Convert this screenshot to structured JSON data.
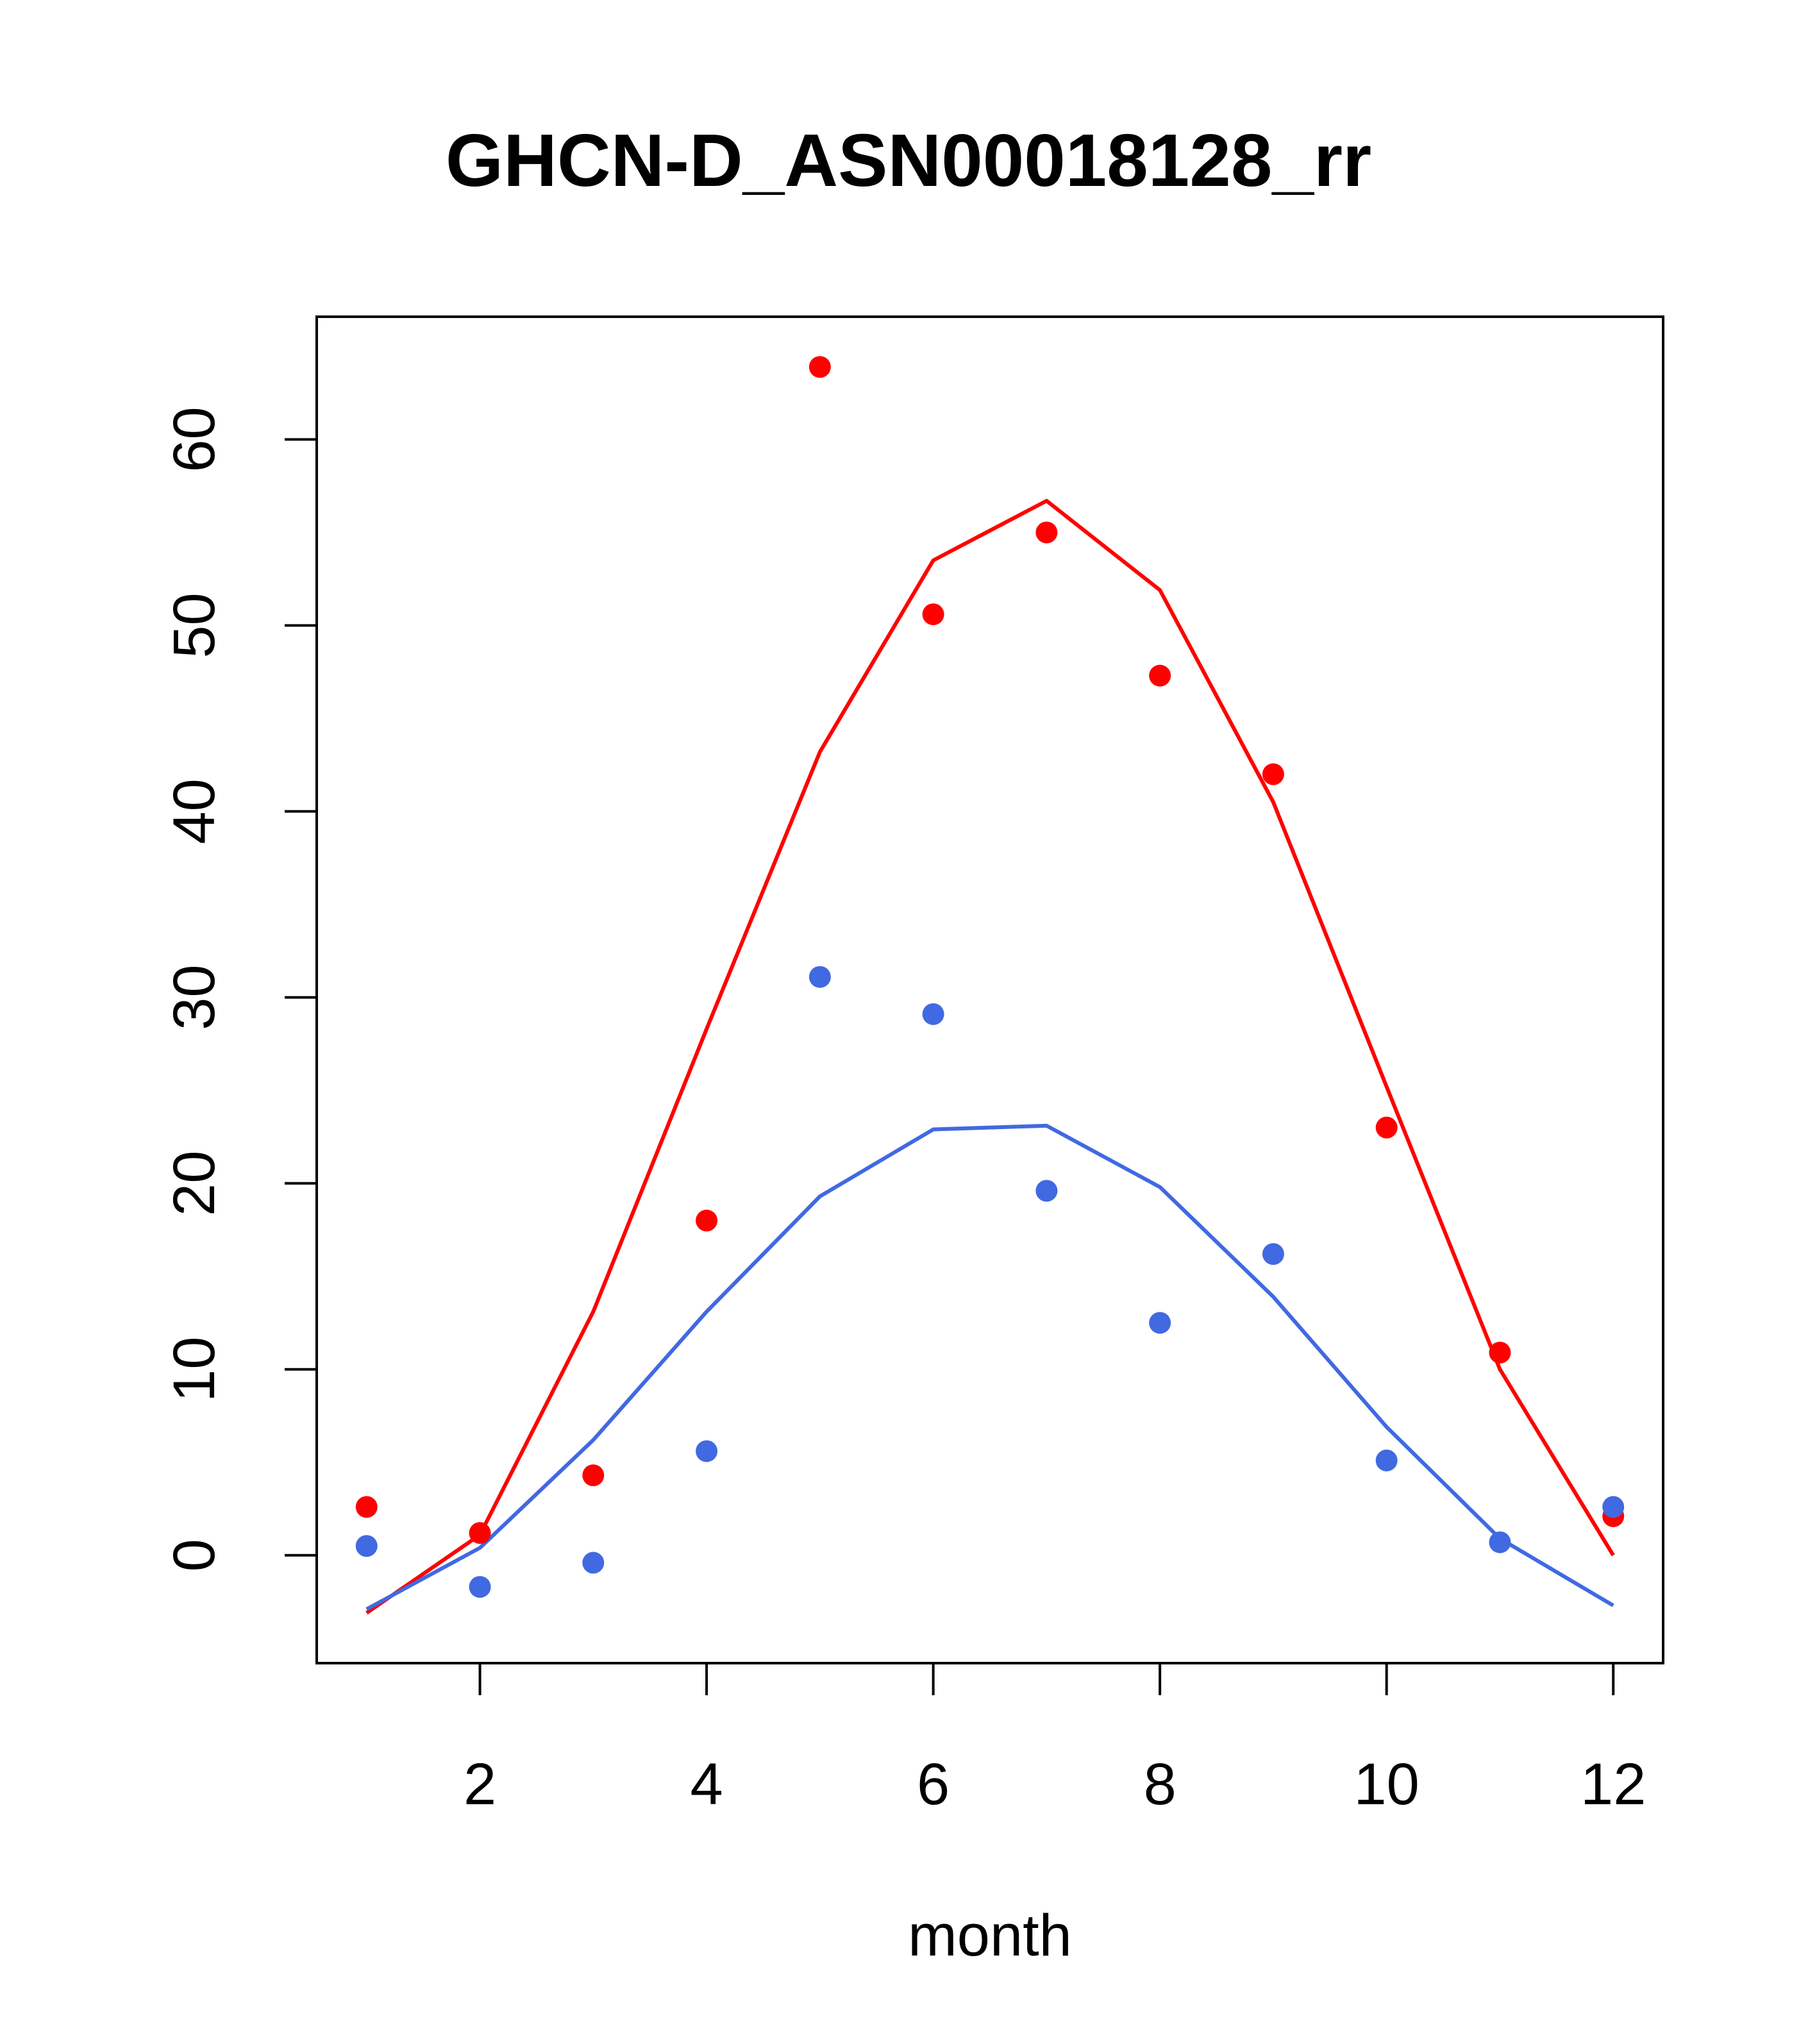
{
  "chart_data": {
    "type": "scatter",
    "title": "GHCN-D_ASN00018128_rr",
    "xlabel": "month",
    "ylabel": "",
    "xlim": [
      0.56,
      12.44
    ],
    "ylim": [
      -5.8,
      66.6
    ],
    "x_ticks": [
      2,
      4,
      6,
      8,
      10,
      12
    ],
    "y_ticks": [
      0,
      10,
      20,
      30,
      40,
      50,
      60
    ],
    "grid": false,
    "legend": "none",
    "x": [
      1,
      2,
      3,
      4,
      5,
      6,
      7,
      8,
      9,
      10,
      11,
      12
    ],
    "series": [
      {
        "color": "#ff0000",
        "points": [
          2.6,
          1.2,
          4.3,
          18.0,
          63.9,
          50.6,
          55.0,
          47.3,
          42.0,
          23.0,
          10.9,
          2.1
        ],
        "line": [
          -3.1,
          1.1,
          13.1,
          28.3,
          43.2,
          53.5,
          56.7,
          51.9,
          40.5,
          25.2,
          10.0,
          0.0
        ]
      },
      {
        "color": "#4169e1",
        "points": [
          0.5,
          -1.7,
          -0.4,
          5.6,
          31.1,
          29.1,
          19.6,
          12.5,
          16.2,
          5.1,
          0.7,
          2.6
        ],
        "line": [
          -2.9,
          0.4,
          6.2,
          13.1,
          19.3,
          22.9,
          23.1,
          19.8,
          13.9,
          6.9,
          0.9,
          -2.7
        ]
      }
    ]
  }
}
